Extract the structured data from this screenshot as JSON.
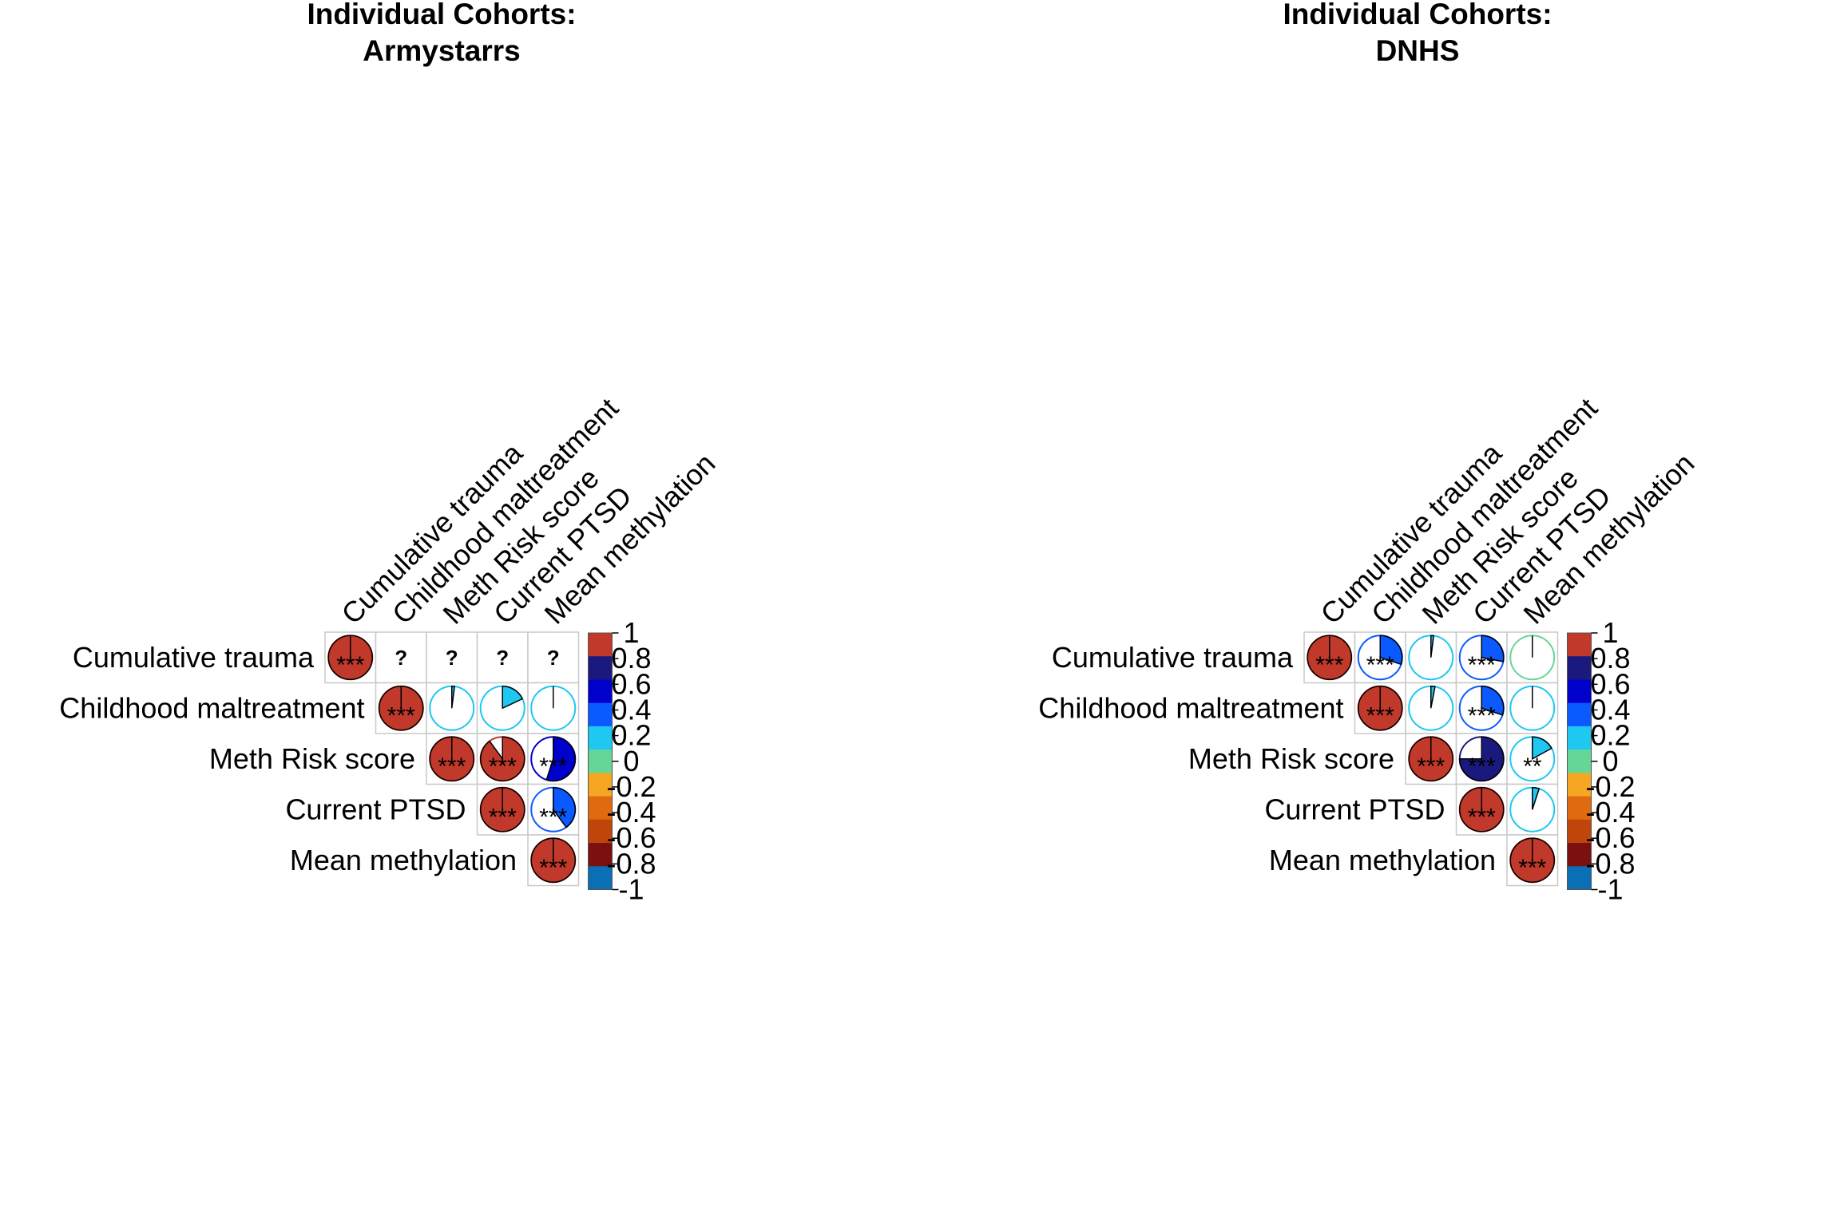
{
  "chart_data": [
    {
      "type": "heatmap",
      "title": [
        "Individual Cohorts:",
        "Armystarrs"
      ],
      "variables": [
        "Cumulative trauma",
        "Childhood maltreatment",
        "Meth Risk score",
        "Current PTSD",
        "Mean methylation"
      ],
      "colorbar": {
        "ticks": [
          "1",
          "0.8",
          "0.6",
          "0.4",
          "0.2",
          "0",
          "-0.2",
          "-0.4",
          "-0.6",
          "-0.8",
          "-1"
        ],
        "colors": [
          "#c0392b",
          "#1a1a7e",
          "#0000cd",
          "#0a5aff",
          "#1ec8f0",
          "#66d696",
          "#f5a623",
          "#e06a10",
          "#c0450a",
          "#7a1010",
          "#0a6fb5"
        ]
      },
      "cells": [
        {
          "row": 0,
          "col": 0,
          "value": 1.0,
          "color": "#c0392b",
          "sig": "***"
        },
        {
          "row": 0,
          "col": 1,
          "value": null,
          "sig": "?"
        },
        {
          "row": 0,
          "col": 2,
          "value": null,
          "sig": "?"
        },
        {
          "row": 0,
          "col": 3,
          "value": null,
          "sig": "?"
        },
        {
          "row": 0,
          "col": 4,
          "value": null,
          "sig": "?"
        },
        {
          "row": 1,
          "col": 1,
          "value": 1.0,
          "color": "#c0392b",
          "sig": "***"
        },
        {
          "row": 1,
          "col": 2,
          "value": 0.02,
          "color": "#1ec8f0",
          "sig": ""
        },
        {
          "row": 1,
          "col": 3,
          "value": 0.18,
          "color": "#1ec8f0",
          "sig": ""
        },
        {
          "row": 1,
          "col": 4,
          "value": 0.0,
          "color": "#1ec8f0",
          "sig": ""
        },
        {
          "row": 2,
          "col": 2,
          "value": 1.0,
          "color": "#c0392b",
          "sig": "***"
        },
        {
          "row": 2,
          "col": 3,
          "value": 0.9,
          "color": "#c0392b",
          "sig": "***"
        },
        {
          "row": 2,
          "col": 4,
          "value": 0.55,
          "color": "#0000cd",
          "sig": "***"
        },
        {
          "row": 3,
          "col": 3,
          "value": 1.0,
          "color": "#c0392b",
          "sig": "***"
        },
        {
          "row": 3,
          "col": 4,
          "value": 0.4,
          "color": "#0a5aff",
          "sig": "***"
        },
        {
          "row": 4,
          "col": 4,
          "value": 1.0,
          "color": "#c0392b",
          "sig": "***"
        }
      ]
    },
    {
      "type": "heatmap",
      "title": [
        "Individual Cohorts:",
        "DNHS"
      ],
      "variables": [
        "Cumulative trauma",
        "Childhood maltreatment",
        "Meth Risk score",
        "Current PTSD",
        "Mean methylation"
      ],
      "colorbar": {
        "ticks": [
          "1",
          "0.8",
          "0.6",
          "0.4",
          "0.2",
          "0",
          "-0.2",
          "-0.4",
          "-0.6",
          "-0.8",
          "-1"
        ],
        "colors": [
          "#c0392b",
          "#1a1a7e",
          "#0000cd",
          "#0a5aff",
          "#1ec8f0",
          "#66d696",
          "#f5a623",
          "#e06a10",
          "#c0450a",
          "#7a1010",
          "#0a6fb5"
        ]
      },
      "cells": [
        {
          "row": 0,
          "col": 0,
          "value": 1.0,
          "color": "#c0392b",
          "sig": "***"
        },
        {
          "row": 0,
          "col": 1,
          "value": 0.3,
          "color": "#0a5aff",
          "sig": "***"
        },
        {
          "row": 0,
          "col": 2,
          "value": 0.02,
          "color": "#1ec8f0",
          "sig": ""
        },
        {
          "row": 0,
          "col": 3,
          "value": 0.28,
          "color": "#0a5aff",
          "sig": "***"
        },
        {
          "row": 0,
          "col": 4,
          "value": 0.0,
          "color": "#66d696",
          "sig": ""
        },
        {
          "row": 1,
          "col": 1,
          "value": 1.0,
          "color": "#c0392b",
          "sig": "***"
        },
        {
          "row": 1,
          "col": 2,
          "value": 0.03,
          "color": "#1ec8f0",
          "sig": ""
        },
        {
          "row": 1,
          "col": 3,
          "value": 0.3,
          "color": "#0a5aff",
          "sig": "***"
        },
        {
          "row": 1,
          "col": 4,
          "value": 0.0,
          "color": "#1ec8f0",
          "sig": ""
        },
        {
          "row": 2,
          "col": 2,
          "value": 1.0,
          "color": "#c0392b",
          "sig": "***"
        },
        {
          "row": 2,
          "col": 3,
          "value": 0.75,
          "color": "#1a1a7e",
          "sig": "***"
        },
        {
          "row": 2,
          "col": 4,
          "value": 0.17,
          "color": "#1ec8f0",
          "sig": "**"
        },
        {
          "row": 3,
          "col": 3,
          "value": 1.0,
          "color": "#c0392b",
          "sig": "***"
        },
        {
          "row": 3,
          "col": 4,
          "value": 0.05,
          "color": "#1ec8f0",
          "sig": ""
        },
        {
          "row": 4,
          "col": 4,
          "value": 1.0,
          "color": "#c0392b",
          "sig": "***"
        }
      ]
    }
  ]
}
